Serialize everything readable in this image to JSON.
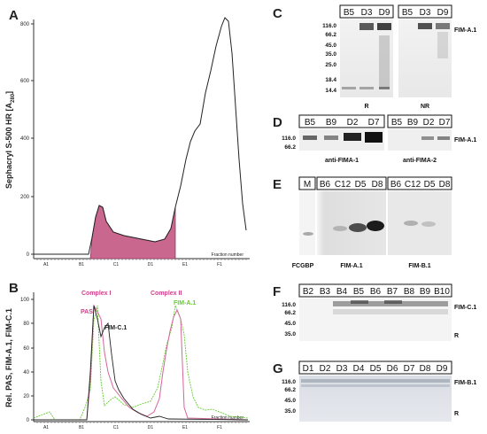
{
  "panels": [
    "A",
    "B",
    "C",
    "D",
    "E",
    "F",
    "G"
  ],
  "panelA": {
    "ylabel": "Sephacryl S-500 HR [A",
    "ylabel_sub": "280",
    "ylabel_end": "]",
    "yticks": [
      "0",
      "200",
      "400",
      "600",
      "800"
    ],
    "xticks": [
      "A1",
      "B1",
      "C1",
      "D1",
      "E1",
      "F1"
    ],
    "xlabel": "Fraction number"
  },
  "panelB": {
    "ylabel": "Rel. PAS, FIM-A.1, FIM-C.1",
    "yticks": [
      "0",
      "20",
      "40",
      "60",
      "80",
      "100"
    ],
    "xticks": [
      "A1",
      "B1",
      "C1",
      "D1",
      "E1",
      "F1"
    ],
    "xlabel": "Fraction number",
    "complex1": "Complex I",
    "complex2": "Complex II",
    "pas": "PAS",
    "fimc": "FIM-C.1",
    "fima": "FIM-A.1"
  },
  "chart_data": [
    {
      "type": "area",
      "panel": "A",
      "ylabel": "Sephacryl S-500 HR [A280]",
      "xlabel": "Fraction number",
      "xticks": [
        "A1",
        "B1",
        "C1",
        "D1",
        "E1",
        "F1"
      ],
      "ylim": [
        0,
        850
      ],
      "note": "shaded region B1 to E1",
      "series": [
        {
          "x": [
            0,
            1,
            1.1,
            1.2,
            1.5,
            2,
            2.5,
            3,
            3.4,
            3.8,
            4.2,
            4.6,
            5,
            5.5,
            6,
            6.3,
            6.5,
            7
          ],
          "y": [
            0,
            0,
            70,
            160,
            60,
            50,
            40,
            60,
            160,
            330,
            440,
            520,
            650,
            800,
            840,
            500,
            250,
            100
          ]
        }
      ]
    },
    {
      "type": "line",
      "panel": "B",
      "ylabel": "Rel. PAS, FIM-A.1, FIM-C.1",
      "xlabel": "Fraction number",
      "xticks": [
        "A1",
        "B1",
        "C1",
        "D1",
        "E1",
        "F1"
      ],
      "ylim": [
        0,
        105
      ],
      "series": [
        {
          "name": "PAS",
          "values": [
            0,
            0,
            0,
            98,
            55,
            30,
            10,
            5,
            2,
            5,
            40,
            85,
            96,
            92,
            10,
            2,
            0,
            0
          ]
        },
        {
          "name": "FIM-C.1",
          "values": [
            0,
            0,
            0,
            100,
            80,
            68,
            40,
            10,
            5,
            3,
            2,
            2,
            2,
            2,
            0,
            0,
            0,
            0
          ]
        },
        {
          "name": "FIM-A.1",
          "values": [
            5,
            2,
            0,
            90,
            20,
            15,
            20,
            18,
            20,
            40,
            80,
            90,
            100,
            85,
            40,
            12,
            3,
            2
          ]
        }
      ]
    }
  ],
  "panelC": {
    "lanes": [
      "B5",
      "D3",
      "D9",
      "B5",
      "D3",
      "D9"
    ],
    "mw": [
      "116.0",
      "66.2",
      "45.0",
      "35.0",
      "25.0",
      "18.4",
      "14.4"
    ],
    "band": "FIM-A.1",
    "bottom1": "R",
    "bottom2": "NR"
  },
  "panelD": {
    "lanes": [
      "B5",
      "B9",
      "D2",
      "D7",
      "B5",
      "B9",
      "D2",
      "D7"
    ],
    "mw": [
      "116.0",
      "66.2"
    ],
    "band": "FIM-A.1",
    "bottom1": "anti-FIMA-1",
    "bottom2": "anti-FIMA-2"
  },
  "panelE": {
    "lanes": [
      "M",
      "B6",
      "C12",
      "D5",
      "D8",
      "B6",
      "C12",
      "D5",
      "D8"
    ],
    "bottom0": "FCGBP",
    "bottom1": "FIM-A.1",
    "bottom2": "FIM-B.1"
  },
  "panelF": {
    "lanes": [
      "B2",
      "B3",
      "B4",
      "B5",
      "B6",
      "B7",
      "B8",
      "B9",
      "B10"
    ],
    "mw": [
      "116.0",
      "66.2",
      "45.0",
      "35.0"
    ],
    "band": "FIM-C.1",
    "cond": "R"
  },
  "panelG": {
    "lanes": [
      "D1",
      "D2",
      "D3",
      "D4",
      "D5",
      "D6",
      "D7",
      "D8",
      "D9"
    ],
    "mw": [
      "116.0",
      "66.2",
      "45.0",
      "35.0"
    ],
    "band": "FIM-B.1",
    "cond": "R"
  },
  "colors": {
    "pink": "#d4669a",
    "green": "#66cc33",
    "black": "#222222",
    "fill": "#c9678f",
    "complex": "#cc4488"
  }
}
